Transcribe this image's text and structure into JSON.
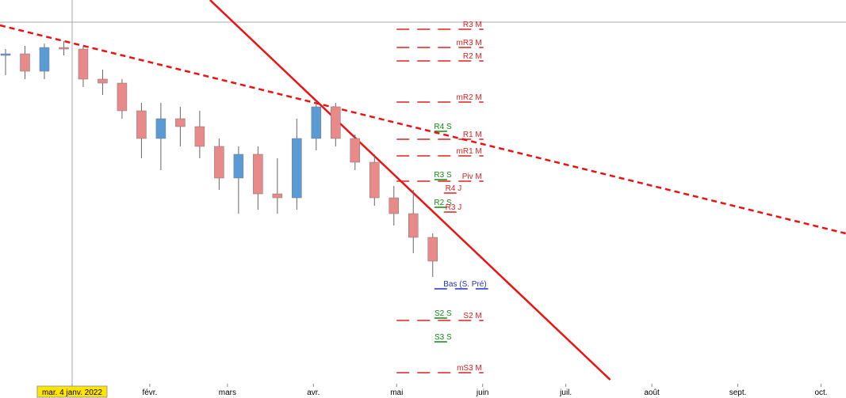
{
  "chart_data": {
    "type": "candlestick",
    "x": [
      -21,
      -14,
      -7,
      0,
      7,
      14,
      21,
      28,
      35,
      42,
      49,
      56,
      63,
      70,
      77,
      84,
      91,
      98,
      105,
      112,
      119,
      126,
      133
    ],
    "open": [
      410,
      412,
      390,
      420,
      418,
      380,
      375,
      340,
      305,
      330,
      320,
      295,
      255,
      285,
      235,
      230,
      305,
      345,
      305,
      275,
      230,
      210,
      180
    ],
    "high": [
      418,
      422,
      425,
      428,
      422,
      392,
      380,
      350,
      350,
      345,
      340,
      305,
      295,
      295,
      280,
      330,
      352,
      350,
      310,
      285,
      245,
      240,
      185
    ],
    "low": [
      385,
      380,
      380,
      410,
      370,
      360,
      330,
      280,
      265,
      295,
      280,
      240,
      210,
      215,
      210,
      215,
      290,
      295,
      265,
      220,
      195,
      160,
      130
    ],
    "close": [
      412,
      390,
      420,
      418,
      380,
      375,
      340,
      305,
      330,
      320,
      295,
      255,
      285,
      235,
      230,
      305,
      345,
      305,
      275,
      230,
      210,
      180,
      150
    ],
    "up_color": "#5b9bd5",
    "down_color": "#e88a8a",
    "xlim": [
      -23,
      282
    ],
    "ylim": [
      0,
      480
    ],
    "xticks": [
      {
        "value": 3,
        "label": "mar. 4 janv. 2022"
      },
      {
        "value": 31,
        "label": "févr."
      },
      {
        "value": 59,
        "label": "mars"
      },
      {
        "value": 90,
        "label": "avr."
      },
      {
        "value": 120,
        "label": "mai"
      },
      {
        "value": 151,
        "label": "juin"
      },
      {
        "value": 181,
        "label": "juil."
      },
      {
        "value": 212,
        "label": "août"
      },
      {
        "value": 243,
        "label": "sept."
      },
      {
        "value": 273,
        "label": "oct."
      }
    ],
    "trendlines": [
      {
        "x": [
          52.7,
          197
        ],
        "y": [
          480,
          0
        ],
        "color": "#ee1111",
        "dashed": false
      },
      {
        "x": [
          -23,
          281.9
        ],
        "y": [
          448,
          185
        ],
        "color": "#ee1111",
        "dashed": true
      }
    ],
    "levels": [
      {
        "label": "R3 M",
        "value": 443,
        "color": "#e02020",
        "x": [
          120,
          151.3
        ]
      },
      {
        "label": "mR3 M",
        "value": 420,
        "color": "#e02020",
        "x": [
          120,
          151.3
        ]
      },
      {
        "label": "R2 M",
        "value": 403,
        "color": "#e02020",
        "x": [
          120,
          151.3
        ]
      },
      {
        "label": "mR2 M",
        "value": 351,
        "color": "#e02020",
        "x": [
          120,
          151.3
        ]
      },
      {
        "label": "R1 M",
        "value": 304,
        "color": "#e02020",
        "x": [
          120,
          151.3
        ]
      },
      {
        "label": "mR1 M",
        "value": 283,
        "color": "#e02020",
        "x": [
          120,
          151.3
        ]
      },
      {
        "label": "Piv M",
        "value": 251,
        "color": "#e02020",
        "x": [
          120,
          151.3
        ]
      },
      {
        "label": "S2 M",
        "value": 75,
        "color": "#e02020",
        "x": [
          120,
          151.3
        ]
      },
      {
        "label": "mS3 M",
        "value": 9,
        "color": "#e02020",
        "x": [
          120,
          151.3
        ]
      },
      {
        "label": "R4 S",
        "value": 314,
        "color": "#118811",
        "x": [
          133.6,
          140.4
        ]
      },
      {
        "label": "R3 S",
        "value": 253,
        "color": "#118811",
        "x": [
          133.6,
          140.4
        ]
      },
      {
        "label": "R2 S",
        "value": 218,
        "color": "#118811",
        "x": [
          133.6,
          140.4
        ]
      },
      {
        "label": "S2 S",
        "value": 78,
        "color": "#118811",
        "x": [
          133.6,
          140.4
        ]
      },
      {
        "label": "S3 S",
        "value": 48,
        "color": "#118811",
        "x": [
          133.6,
          140.4
        ]
      },
      {
        "label": "R4 J",
        "value": 236,
        "color": "#e02020",
        "x": [
          137,
          144
        ]
      },
      {
        "label": "R3 J",
        "value": 212,
        "color": "#e02020",
        "x": [
          137,
          144
        ]
      },
      {
        "label": "Bas (S. Pré)",
        "value": 115,
        "color": "#2233bb",
        "x": [
          133.6,
          153
        ]
      }
    ]
  }
}
